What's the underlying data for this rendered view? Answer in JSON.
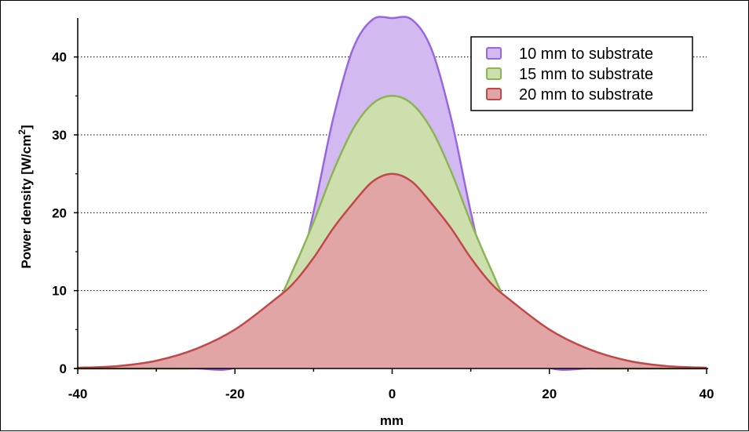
{
  "chart_data": {
    "type": "area",
    "xlabel": "mm",
    "ylabel": "Power density [W/cm",
    "ylabel_sup": "2",
    "ylabel_end": "]",
    "xlim": [
      -40,
      40
    ],
    "ylim": [
      0,
      45
    ],
    "xticks": [
      -40,
      -20,
      0,
      20,
      40
    ],
    "yticks": [
      0,
      10,
      20,
      30,
      40
    ],
    "grid": "horizontal dotted",
    "legend_position": "top-right",
    "x": [
      -40,
      -35,
      -30,
      -25,
      -20,
      -15,
      -12.5,
      -10,
      -7.5,
      -5,
      -2.5,
      0,
      2.5,
      5,
      7.5,
      10,
      12.5,
      15,
      20,
      25,
      30,
      35,
      40
    ],
    "series": [
      {
        "name": "10 mm to substrate",
        "color": "#9966e0",
        "fill": "#d2b9f0",
        "values": [
          0.0,
          0.0,
          0.0,
          0.0,
          0.1,
          3.4,
          9.5,
          20.1,
          32.1,
          41.0,
          44.8,
          45.0,
          44.8,
          41.0,
          32.1,
          20.1,
          9.5,
          3.4,
          0.1,
          0.0,
          0.0,
          0.0,
          0.0
        ]
      },
      {
        "name": "15 mm to substrate",
        "color": "#8cb454",
        "fill": "#cddfad",
        "values": [
          0.0,
          0.0,
          0.0,
          0.1,
          1.2,
          7.8,
          12.9,
          18.8,
          25.3,
          30.7,
          34.0,
          35.0,
          34.0,
          30.7,
          25.3,
          18.8,
          12.9,
          7.8,
          1.2,
          0.1,
          0.0,
          0.0,
          0.0
        ]
      },
      {
        "name": "20 mm to substrate",
        "color": "#c0484a",
        "fill": "#e1a5a5",
        "values": [
          0.1,
          0.3,
          1.0,
          2.5,
          5.0,
          8.8,
          11.0,
          14.2,
          18.0,
          21.2,
          24.0,
          25.0,
          24.0,
          21.2,
          18.0,
          14.2,
          11.0,
          8.8,
          5.0,
          2.5,
          1.0,
          0.3,
          0.1
        ]
      }
    ]
  }
}
